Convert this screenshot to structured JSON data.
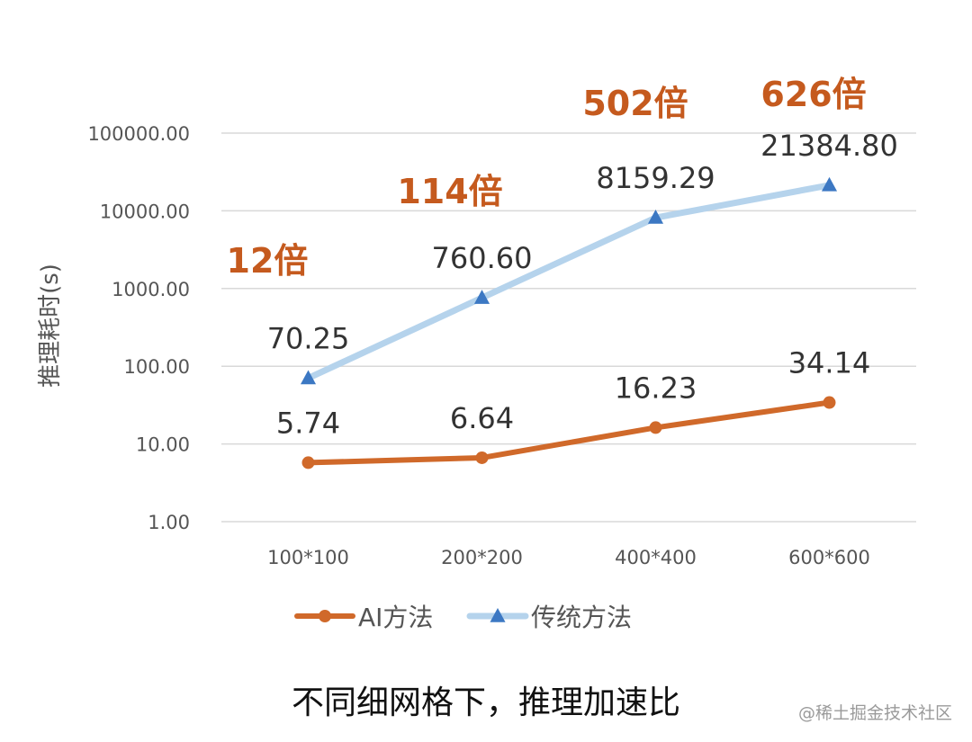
{
  "caption": "不同细网格下，推理加速比",
  "watermark": "@稀土掘金技术社区",
  "chart_data": {
    "type": "line",
    "title": "",
    "xlabel": "",
    "ylabel": "推理耗时(s)",
    "yscale": "log",
    "ylim": [
      1,
      100000
    ],
    "yticks": [
      "1.00",
      "10.00",
      "100.00",
      "1000.00",
      "10000.00",
      "100000.00"
    ],
    "categories": [
      "100*100",
      "200*200",
      "400*400",
      "600*600"
    ],
    "grid": true,
    "legend_position": "bottom",
    "series": [
      {
        "name": "AI方法",
        "values": [
          5.74,
          6.64,
          16.23,
          34.14
        ],
        "labels": [
          "5.74",
          "6.64",
          "16.23",
          "34.14"
        ],
        "color": "#d0692a",
        "marker": "circle"
      },
      {
        "name": "传统方法",
        "values": [
          70.25,
          760.6,
          8159.29,
          21384.8
        ],
        "labels": [
          "70.25",
          "760.60",
          "8159.29",
          "21384.80"
        ],
        "color": "#b5d3ec",
        "marker": "triangle",
        "marker_color": "#3c78c3"
      }
    ],
    "annotations": [
      "12倍",
      "114倍",
      "502倍",
      "626倍"
    ],
    "annotation_color": "#c55a1e"
  }
}
